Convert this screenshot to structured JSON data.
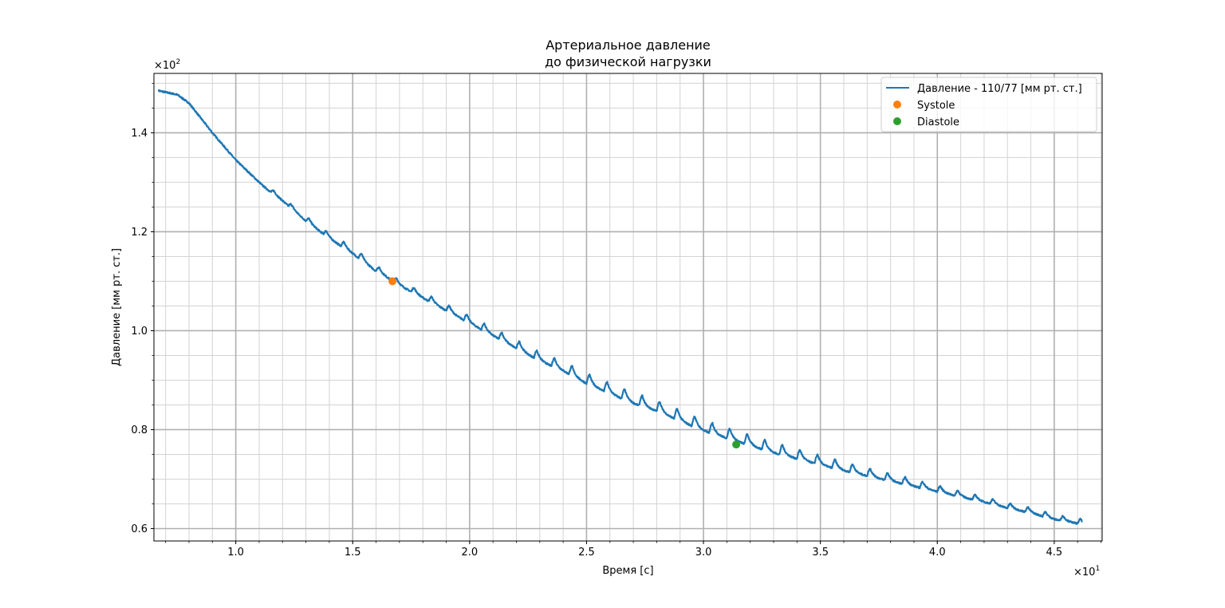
{
  "chart_data": {
    "type": "line",
    "title_line1": "Артериальное давление",
    "title_line2": "до физической нагрузки",
    "xlabel": "Время [с]",
    "ylabel": "Давление [мм рт. ст.]",
    "x_offset_label": "×10",
    "x_offset_exp": "1",
    "y_offset_label": "×10",
    "y_offset_exp": "2",
    "xlim": [
      0.65,
      4.705
    ],
    "ylim": [
      0.575,
      1.52
    ],
    "x_ticks": [
      1.0,
      1.5,
      2.0,
      2.5,
      3.0,
      3.5,
      4.0,
      4.5
    ],
    "x_tick_labels": [
      "1.0",
      "1.5",
      "2.0",
      "2.5",
      "3.0",
      "3.5",
      "4.0",
      "4.5"
    ],
    "y_ticks": [
      0.6,
      0.8,
      1.0,
      1.2,
      1.4
    ],
    "y_tick_labels": [
      "0.6",
      "0.8",
      "1.0",
      "1.2",
      "1.4"
    ],
    "x_minor_step": 0.1,
    "y_minor_step": 0.05,
    "grid": true,
    "legend_position": "upper-right",
    "series": [
      {
        "name": "Давление - 110/77 [мм рт. ст.]",
        "color": "#1f77b4",
        "x_start": 0.67,
        "x_end": 4.62,
        "trend_x": [
          0.67,
          0.75,
          0.8,
          0.9,
          1.0,
          1.1,
          1.2,
          1.3,
          1.4,
          1.5,
          1.6,
          1.7,
          1.8,
          1.9,
          2.0,
          2.1,
          2.2,
          2.3,
          2.4,
          2.5,
          2.6,
          2.7,
          2.8,
          2.9,
          3.0,
          3.1,
          3.2,
          3.3,
          3.4,
          3.5,
          3.6,
          3.7,
          3.8,
          3.9,
          4.0,
          4.1,
          4.2,
          4.3,
          4.4,
          4.5,
          4.62
        ],
        "trend_y": [
          1.485,
          1.477,
          1.46,
          1.4,
          1.345,
          1.3,
          1.265,
          1.225,
          1.19,
          1.16,
          1.125,
          1.095,
          1.07,
          1.045,
          1.02,
          0.995,
          0.97,
          0.945,
          0.925,
          0.9,
          0.88,
          0.86,
          0.845,
          0.825,
          0.805,
          0.79,
          0.775,
          0.76,
          0.748,
          0.735,
          0.723,
          0.712,
          0.701,
          0.69,
          0.679,
          0.668,
          0.657,
          0.645,
          0.635,
          0.622,
          0.612
        ],
        "pulse_start_x": 1.6,
        "pulse_period": 0.075
      },
      {
        "name": "Systole",
        "color": "#ff7f0e",
        "points": [
          [
            1.67,
            1.1
          ]
        ]
      },
      {
        "name": "Diastole",
        "color": "#2ca02c",
        "points": [
          [
            3.14,
            0.77
          ]
        ]
      }
    ]
  }
}
